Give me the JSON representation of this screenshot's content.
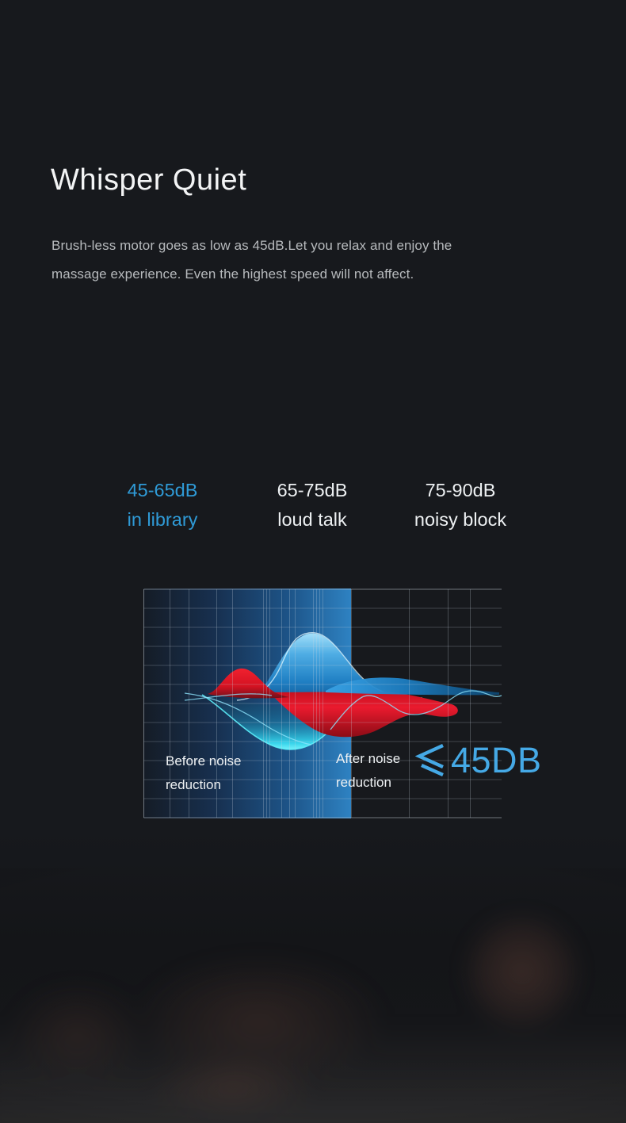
{
  "theme": {
    "background": "#17191d",
    "accent_blue": "#2f9ad6",
    "result_blue": "#45a9e6",
    "text_primary": "#f3f4f5",
    "text_secondary": "#b7babd",
    "wave_red": "#e5172b",
    "wave_cyan": "#4ae4f6",
    "band_blue": "#2e82c2"
  },
  "hero": {
    "title": "Whisper Quiet",
    "description_lines": [
      "Brush-less motor goes as low as 45dB.Let you relax and enjoy the",
      "massage experience. Even the highest speed will not affect."
    ]
  },
  "db_levels": [
    {
      "range": "45-65dB",
      "label": "in library",
      "highlighted": true
    },
    {
      "range": "65-75dB",
      "label": "loud talk",
      "highlighted": false
    },
    {
      "range": "75-90dB",
      "label": "noisy block",
      "highlighted": false
    }
  ],
  "noise_chart": {
    "before_label": [
      "Before noise",
      "reduction"
    ],
    "after_label": [
      "After noise",
      "reduction"
    ],
    "result_symbol": "≤",
    "result_value": "45DB"
  }
}
